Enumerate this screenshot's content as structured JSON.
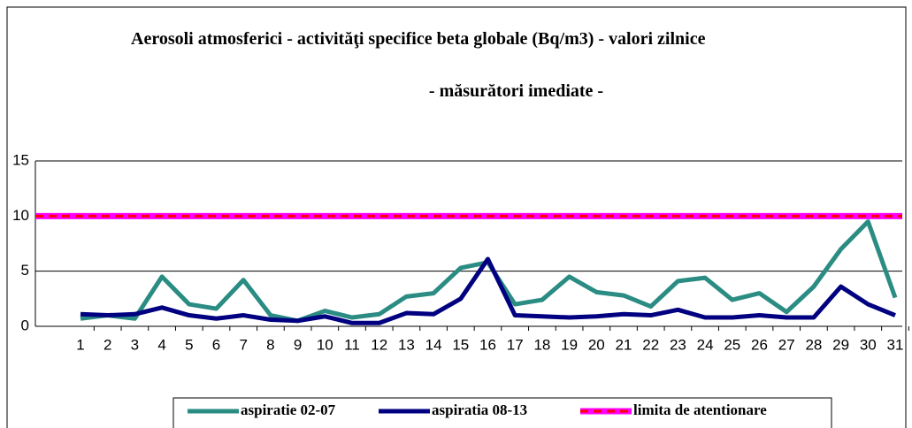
{
  "chart_data": {
    "type": "line",
    "title": "Aerosoli atmosferici - activităţi specifice beta   globale (Bq/m3) - valori zilnice",
    "subtitle": "- măsurători imediate -",
    "categories": [
      1,
      2,
      3,
      4,
      5,
      6,
      7,
      8,
      9,
      10,
      11,
      12,
      13,
      14,
      15,
      16,
      17,
      18,
      19,
      20,
      21,
      22,
      23,
      24,
      25,
      26,
      27,
      28,
      29,
      30,
      31
    ],
    "series": [
      {
        "name": "aspiratie 02-07",
        "color": "#2a8c82",
        "values": [
          0.7,
          1.0,
          0.7,
          4.5,
          2.0,
          1.6,
          4.2,
          1.0,
          0.5,
          1.4,
          0.8,
          1.1,
          2.7,
          3.0,
          5.3,
          5.8,
          2.0,
          2.4,
          4.5,
          3.1,
          2.8,
          1.8,
          4.1,
          4.4,
          2.4,
          3.0,
          1.3,
          3.6,
          7.0,
          9.5,
          2.6
        ]
      },
      {
        "name": "aspiratia 08-13",
        "color": "#000080",
        "values": [
          1.1,
          1.0,
          1.1,
          1.7,
          1.0,
          0.7,
          1.0,
          0.6,
          0.5,
          0.9,
          0.3,
          0.3,
          1.2,
          1.1,
          2.5,
          6.1,
          1.0,
          0.9,
          0.8,
          0.9,
          1.1,
          1.0,
          1.5,
          0.8,
          0.8,
          1.0,
          0.8,
          0.8,
          3.6,
          2.0,
          1.0
        ]
      },
      {
        "name": "limita de atentionare",
        "color": "#ff00ff",
        "dash_color": "#ff0000",
        "values": [
          10,
          10,
          10,
          10,
          10,
          10,
          10,
          10,
          10,
          10,
          10,
          10,
          10,
          10,
          10,
          10,
          10,
          10,
          10,
          10,
          10,
          10,
          10,
          10,
          10,
          10,
          10,
          10,
          10,
          10,
          10
        ]
      }
    ],
    "ylim": [
      0,
      15
    ],
    "yticks": [
      0,
      5,
      10,
      15
    ],
    "grid": true
  }
}
